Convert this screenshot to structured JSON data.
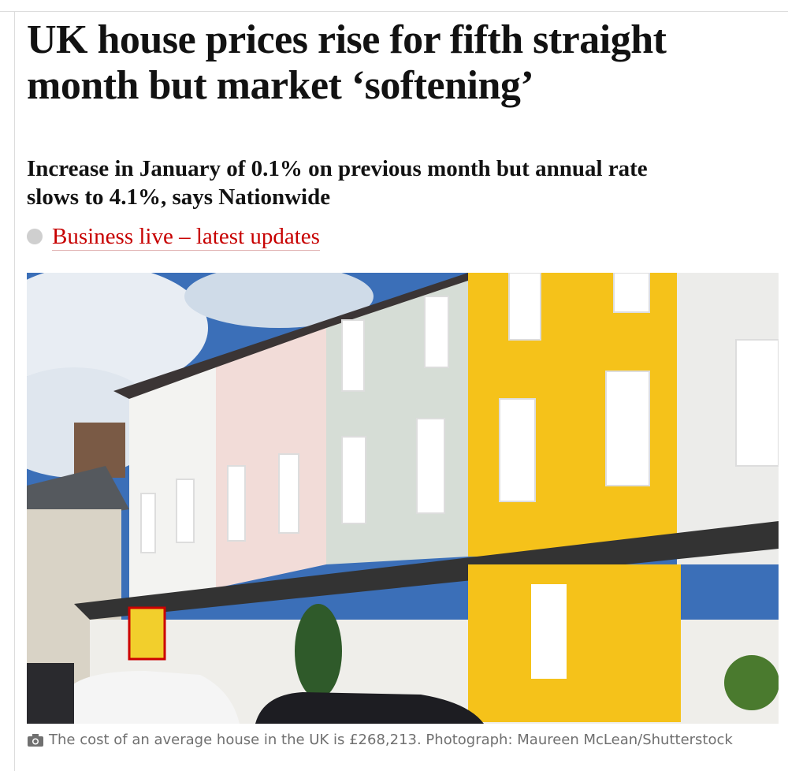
{
  "article": {
    "headline": "UK house prices rise for fifth straight month but market ‘softening’",
    "standfirst": "Increase in January of 0.1% on previous month but annual rate slows to 4.1%, says Nationwide",
    "live_link": "Business live – latest updates",
    "caption": "The cost of an average house in the UK is £268,213. Photograph: Maureen McLean/Shutterstock"
  }
}
